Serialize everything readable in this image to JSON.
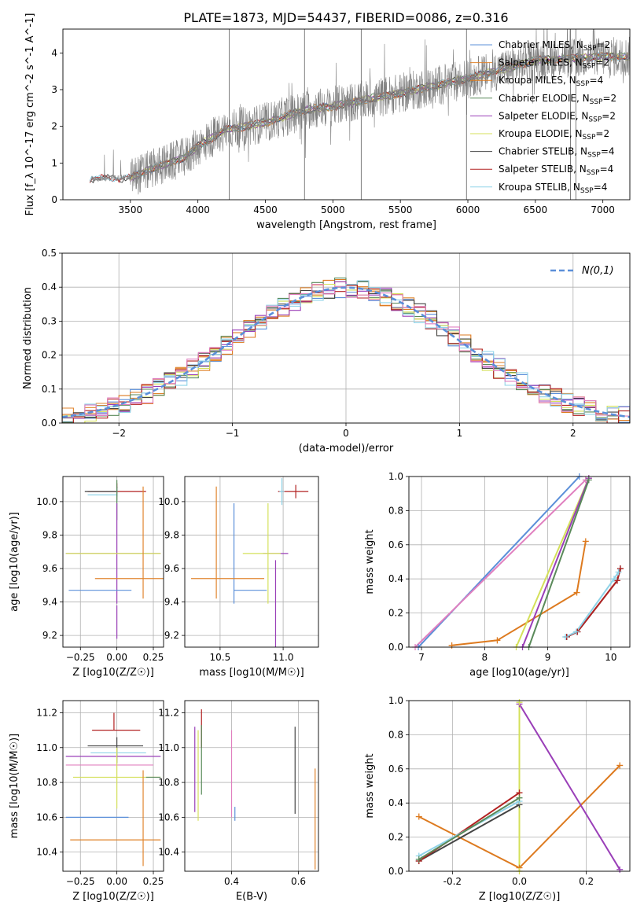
{
  "figure_title": "PLATE=1873, MJD=54437, FIBERID=0086, z=0.316",
  "colors": {
    "chabrier_miles": "#5b8fd9",
    "salpeter_miles": "#e0852f",
    "kroupa_miles": "#dd7a1f",
    "chabrier_elodie": "#5a8a5a",
    "salpeter_elodie": "#9a3fb8",
    "kroupa_elodie": "#d4e05a",
    "chabrier_stelib": "#444444",
    "salpeter_stelib": "#b22222",
    "kroupa_stelib": "#8fd3e8",
    "spectrum": "#808080",
    "normal": "#5b8fd9",
    "pink": "#e07fbf"
  },
  "chart_data": [
    {
      "id": "spectrum",
      "type": "line",
      "title": "PLATE=1873, MJD=54437, FIBERID=0086, z=0.316",
      "xlabel": "wavelength [Angstrom, rest frame]",
      "ylabel": "Flux [f_λ 10^-17 erg cm^-2 s^-1 A^-1]",
      "xlim": [
        3000,
        7200
      ],
      "ylim": [
        0,
        4.65
      ],
      "xticks": [
        3500,
        4000,
        4500,
        5000,
        5500,
        6000,
        6500,
        7000
      ],
      "yticks": [
        0,
        1,
        2,
        3,
        4
      ],
      "data_trend": {
        "x": [
          3200,
          3400,
          3500,
          3700,
          3900,
          4000,
          4200,
          4500,
          4800,
          5000,
          5500,
          6000,
          6500,
          7000
        ],
        "y": [
          0.55,
          0.6,
          0.6,
          0.9,
          1.15,
          1.45,
          1.9,
          2.1,
          2.45,
          2.55,
          2.9,
          3.3,
          3.8,
          3.9
        ]
      },
      "legend_position": "right",
      "series": [
        {
          "name": "Chabrier MILES, N_SSP=2",
          "color_key": "chabrier_miles"
        },
        {
          "name": "Salpeter MILES, N_SSP=2",
          "color_key": "salpeter_miles"
        },
        {
          "name": "Kroupa MILES, N_SSP=4",
          "color_key": "kroupa_miles"
        },
        {
          "name": "Chabrier ELODIE, N_SSP=2",
          "color_key": "chabrier_elodie"
        },
        {
          "name": "Salpeter ELODIE, N_SSP=2",
          "color_key": "salpeter_elodie"
        },
        {
          "name": "Kroupa ELODIE, N_SSP=2",
          "color_key": "kroupa_elodie"
        },
        {
          "name": "Chabrier STELIB, N_SSP=4",
          "color_key": "chabrier_stelib"
        },
        {
          "name": "Salpeter STELIB, N_SSP=4",
          "color_key": "salpeter_stelib"
        },
        {
          "name": "Kroupa STELIB, N_SSP=4",
          "color_key": "kroupa_stelib"
        }
      ]
    },
    {
      "id": "residuals",
      "type": "line",
      "xlabel": "(data-model)/error",
      "ylabel": "Normed distribution",
      "xlim": [
        -2.5,
        2.5
      ],
      "ylim": [
        0,
        0.5
      ],
      "xticks": [
        -2,
        -1,
        0,
        1,
        2
      ],
      "yticks": [
        0.0,
        0.1,
        0.2,
        0.3,
        0.4,
        0.5
      ],
      "grid": true,
      "legend_position": "top-right",
      "legend_label": "N(0,1)"
    },
    {
      "id": "z_age",
      "type": "scatter",
      "xlabel": "Z [log10(Z/Z☉)]",
      "ylabel": "age  [log10(age/yr)]",
      "xlim": [
        -0.37,
        0.32
      ],
      "ylim": [
        9.13,
        10.15
      ],
      "xticks": [
        -0.25,
        0.0,
        0.25
      ],
      "yticks": [
        9.2,
        9.4,
        9.6,
        9.8,
        10.0
      ],
      "grid": true,
      "points": [
        {
          "x": 0.0,
          "y": 10.06,
          "xerr": [
            0.2,
            0.2
          ],
          "yerr": [
            0.05,
            0.05
          ],
          "color_key": "salpeter_stelib"
        },
        {
          "x": 0.0,
          "y": 10.06,
          "xerr": [
            0.22,
            0.0
          ],
          "yerr": [
            0.03,
            0.03
          ],
          "color_key": "chabrier_stelib"
        },
        {
          "x": 0.0,
          "y": 10.04,
          "xerr": [
            0.2,
            0.0
          ],
          "yerr": [
            0.04,
            0.04
          ],
          "color_key": "kroupa_stelib"
        },
        {
          "x": 0.0,
          "y": 10.01,
          "xerr": [
            0.0,
            0.0
          ],
          "yerr": [
            0.12,
            0.12
          ],
          "color_key": "chabrier_elodie"
        },
        {
          "x": 0.0,
          "y": 9.69,
          "xerr": [
            0.35,
            0.3
          ],
          "yerr": [
            0.3,
            0.3
          ],
          "color_key": "salpeter_elodie"
        },
        {
          "x": 0.0,
          "y": 9.69,
          "xerr": [
            0.35,
            0.3
          ],
          "yerr": [
            0.0,
            0.0
          ],
          "color_key": "kroupa_elodie"
        },
        {
          "x": 0.18,
          "y": 9.54,
          "xerr": [
            0.33,
            0.15
          ],
          "yerr": [
            0.12,
            0.55
          ],
          "color_key": "salpeter_miles"
        },
        {
          "x": 0.0,
          "y": 9.47,
          "xerr": [
            0.33,
            0.1
          ],
          "yerr": [
            0.0,
            0.0
          ],
          "color_key": "chabrier_miles"
        },
        {
          "x": 0.0,
          "y": 9.28,
          "xerr": [
            0.0,
            0.0
          ],
          "yerr": [
            0.1,
            0.1
          ],
          "color_key": "salpeter_elodie"
        }
      ]
    },
    {
      "id": "mass_age",
      "type": "scatter",
      "xlabel": "mass [log10(M/M☉)]",
      "ylabel": "",
      "xlim": [
        10.22,
        11.28
      ],
      "ylim": [
        9.13,
        10.15
      ],
      "xticks": [
        10.5,
        11.0
      ],
      "yticks": [
        9.2,
        9.4,
        9.6,
        9.8,
        10.0
      ],
      "grid": true,
      "points": [
        {
          "x": 11.1,
          "y": 10.06,
          "xerr": [
            0.14,
            0.1
          ],
          "yerr": [
            0.04,
            0.04
          ],
          "color_key": "salpeter_stelib"
        },
        {
          "x": 10.99,
          "y": 10.06,
          "xerr": [
            0.02,
            0.02
          ],
          "yerr": [
            0.08,
            0.08
          ],
          "color_key": "kroupa_stelib"
        },
        {
          "x": 10.94,
          "y": 10.05,
          "xerr": [
            0.0,
            0.0
          ],
          "yerr": [
            0.0,
            0.0
          ],
          "color_key": "chabrier_elodie"
        },
        {
          "x": 10.94,
          "y": 9.69,
          "xerr": [
            0.1,
            0.1
          ],
          "yerr": [
            0.0,
            0.0
          ],
          "color_key": "salpeter_elodie"
        },
        {
          "x": 10.88,
          "y": 9.69,
          "xerr": [
            0.2,
            0.1
          ],
          "yerr": [
            0.3,
            0.3
          ],
          "color_key": "kroupa_elodie"
        },
        {
          "x": 10.61,
          "y": 9.69,
          "xerr": [
            0.0,
            0.0
          ],
          "yerr": [
            0.3,
            0.3
          ],
          "color_key": "chabrier_miles"
        },
        {
          "x": 10.61,
          "y": 9.47,
          "xerr": [
            0.0,
            0.26
          ],
          "yerr": [
            0.0,
            0.0
          ],
          "color_key": "chabrier_miles"
        },
        {
          "x": 10.47,
          "y": 9.54,
          "xerr": [
            0.2,
            0.38
          ],
          "yerr": [
            0.12,
            0.55
          ],
          "color_key": "salpeter_miles"
        },
        {
          "x": 10.94,
          "y": 9.25,
          "xerr": [
            0.0,
            0.0
          ],
          "yerr": [
            0.15,
            0.4
          ],
          "color_key": "salpeter_elodie"
        }
      ]
    },
    {
      "id": "age_massweight",
      "type": "line",
      "xlabel": "age  [log10(age/yr)]",
      "ylabel": "mass weight",
      "xlim": [
        6.8,
        10.3
      ],
      "ylim": [
        0,
        1.0
      ],
      "xticks": [
        7,
        8,
        9,
        10
      ],
      "yticks": [
        0.0,
        0.2,
        0.4,
        0.6,
        0.8,
        1.0
      ],
      "grid": true,
      "series": [
        {
          "color_key": "chabrier_miles",
          "x": [
            6.95,
            9.5
          ],
          "y": [
            0.0,
            1.0
          ]
        },
        {
          "color_key": "pink",
          "x": [
            6.9,
            9.6
          ],
          "y": [
            0.0,
            0.98
          ]
        },
        {
          "color_key": "kroupa_miles",
          "x": [
            7.48,
            8.2,
            9.46,
            9.6
          ],
          "y": [
            0.01,
            0.04,
            0.32,
            0.62
          ]
        },
        {
          "color_key": "kroupa_elodie",
          "x": [
            8.5,
            9.65
          ],
          "y": [
            0.0,
            0.99
          ]
        },
        {
          "color_key": "salpeter_elodie",
          "x": [
            8.6,
            9.65
          ],
          "y": [
            0.0,
            0.99
          ]
        },
        {
          "color_key": "chabrier_elodie",
          "x": [
            8.7,
            9.65
          ],
          "y": [
            0.0,
            0.98
          ]
        },
        {
          "color_key": "chabrier_stelib",
          "x": [
            9.3,
            9.47,
            10.1,
            10.15
          ],
          "y": [
            0.06,
            0.09,
            0.39,
            0.46
          ]
        },
        {
          "color_key": "salpeter_stelib",
          "x": [
            9.3,
            9.47,
            10.1,
            10.15
          ],
          "y": [
            0.06,
            0.09,
            0.39,
            0.46
          ]
        },
        {
          "color_key": "kroupa_stelib",
          "x": [
            9.28,
            9.45,
            10.05,
            10.12
          ],
          "y": [
            0.06,
            0.09,
            0.4,
            0.44
          ]
        }
      ]
    },
    {
      "id": "z_mass",
      "type": "scatter",
      "xlabel": "Z [log10(Z/Z☉)]",
      "ylabel": "mass [log10(M/M☉)]",
      "xlim": [
        -0.37,
        0.32
      ],
      "ylim": [
        10.29,
        11.27
      ],
      "xticks": [
        -0.25,
        0.0,
        0.25
      ],
      "yticks": [
        10.4,
        10.6,
        10.8,
        11.0,
        11.2
      ],
      "grid": true,
      "points": [
        {
          "x": -0.02,
          "y": 11.1,
          "xerr": [
            0.15,
            0.18
          ],
          "yerr": [
            0.0,
            0.1
          ],
          "color_key": "salpeter_stelib"
        },
        {
          "x": 0.0,
          "y": 11.01,
          "xerr": [
            0.2,
            0.18
          ],
          "yerr": [
            0.1,
            0.05
          ],
          "color_key": "chabrier_stelib"
        },
        {
          "x": 0.0,
          "y": 10.97,
          "xerr": [
            0.18,
            0.2
          ],
          "yerr": [
            0.0,
            0.0
          ],
          "color_key": "kroupa_stelib"
        },
        {
          "x": 0.0,
          "y": 10.95,
          "xerr": [
            0.35,
            0.3
          ],
          "yerr": [
            0.0,
            0.0
          ],
          "color_key": "salpeter_elodie"
        },
        {
          "x": 0.0,
          "y": 10.9,
          "xerr": [
            0.35,
            0.25
          ],
          "yerr": [
            0.0,
            0.0
          ],
          "color_key": "pink"
        },
        {
          "x": 0.0,
          "y": 10.83,
          "xerr": [
            0.3,
            0.3
          ],
          "yerr": [
            0.0,
            0.0
          ],
          "color_key": "kroupa_elodie"
        },
        {
          "x": 0.25,
          "y": 10.83,
          "xerr": [
            0.05,
            0.05
          ],
          "yerr": [
            0.0,
            0.0
          ],
          "color_key": "chabrier_elodie"
        },
        {
          "x": 0.0,
          "y": 10.6,
          "xerr": [
            0.35,
            0.08
          ],
          "yerr": [
            0.0,
            0.0
          ],
          "color_key": "chabrier_miles"
        },
        {
          "x": 0.18,
          "y": 10.47,
          "xerr": [
            0.5,
            0.12
          ],
          "yerr": [
            0.15,
            0.4
          ],
          "color_key": "salpeter_miles"
        },
        {
          "x": 0.0,
          "y": 10.8,
          "xerr": [
            0.0,
            0.0
          ],
          "yerr": [
            0.15,
            0.2
          ],
          "color_key": "kroupa_elodie"
        }
      ]
    },
    {
      "id": "ebv_mass",
      "type": "scatter",
      "xlabel": "E(B-V)",
      "ylabel": "",
      "xlim": [
        0.26,
        0.66
      ],
      "ylim": [
        10.29,
        11.27
      ],
      "xticks": [
        0.2,
        0.4,
        0.6
      ],
      "yticks": [
        10.4,
        10.6,
        10.8,
        11.0,
        11.2
      ],
      "grid": true,
      "points": [
        {
          "x": 0.29,
          "y": 10.9,
          "xerr": [
            0.0,
            0.0
          ],
          "yerr": [
            0.27,
            0.22
          ],
          "color_key": "salpeter_elodie"
        },
        {
          "x": 0.3,
          "y": 10.83,
          "xerr": [
            0.0,
            0.0
          ],
          "yerr": [
            0.25,
            0.27
          ],
          "color_key": "kroupa_elodie"
        },
        {
          "x": 0.31,
          "y": 11.0,
          "xerr": [
            0.0,
            0.0
          ],
          "yerr": [
            0.0,
            0.22
          ],
          "color_key": "salpeter_stelib"
        },
        {
          "x": 0.31,
          "y": 10.93,
          "xerr": [
            0.0,
            0.0
          ],
          "yerr": [
            0.2,
            0.2
          ],
          "color_key": "chabrier_elodie"
        },
        {
          "x": 0.4,
          "y": 10.9,
          "xerr": [
            0.0,
            0.0
          ],
          "yerr": [
            0.3,
            0.2
          ],
          "color_key": "pink"
        },
        {
          "x": 0.41,
          "y": 10.62,
          "xerr": [
            0.0,
            0.0
          ],
          "yerr": [
            0.04,
            0.04
          ],
          "color_key": "chabrier_miles"
        },
        {
          "x": 0.59,
          "y": 10.62,
          "xerr": [
            0.0,
            0.0
          ],
          "yerr": [
            0.0,
            0.5
          ],
          "color_key": "chabrier_stelib"
        },
        {
          "x": 0.65,
          "y": 10.6,
          "xerr": [
            0.0,
            0.0
          ],
          "yerr": [
            0.3,
            0.28
          ],
          "color_key": "salpeter_miles"
        }
      ]
    },
    {
      "id": "z_massweight",
      "type": "line",
      "xlabel": "Z [log10(Z/Z☉)]",
      "ylabel": "mass weight",
      "xlim": [
        -0.33,
        0.33
      ],
      "ylim": [
        0,
        1.0
      ],
      "xticks": [
        -0.2,
        0.0,
        0.2
      ],
      "yticks": [
        0.0,
        0.2,
        0.4,
        0.6,
        0.8,
        1.0
      ],
      "grid": true,
      "series": [
        {
          "color_key": "kroupa_miles",
          "x": [
            -0.3,
            0.0,
            0.3
          ],
          "y": [
            0.32,
            0.02,
            0.62
          ]
        },
        {
          "color_key": "salpeter_elodie",
          "x": [
            0.0,
            0.3
          ],
          "y": [
            0.98,
            0.01
          ]
        },
        {
          "color_key": "kroupa_elodie",
          "x": [
            0.0,
            0.0
          ],
          "y": [
            0.0,
            0.99
          ]
        },
        {
          "color_key": "chabrier_stelib",
          "x": [
            -0.3,
            0.0
          ],
          "y": [
            0.06,
            0.39
          ]
        },
        {
          "color_key": "salpeter_stelib",
          "x": [
            -0.3,
            0.0
          ],
          "y": [
            0.06,
            0.46
          ]
        },
        {
          "color_key": "kroupa_stelib",
          "x": [
            -0.3,
            0.0
          ],
          "y": [
            0.09,
            0.41
          ]
        },
        {
          "color_key": "chabrier_elodie",
          "x": [
            -0.3,
            0.0
          ],
          "y": [
            0.07,
            0.43
          ]
        }
      ]
    }
  ]
}
